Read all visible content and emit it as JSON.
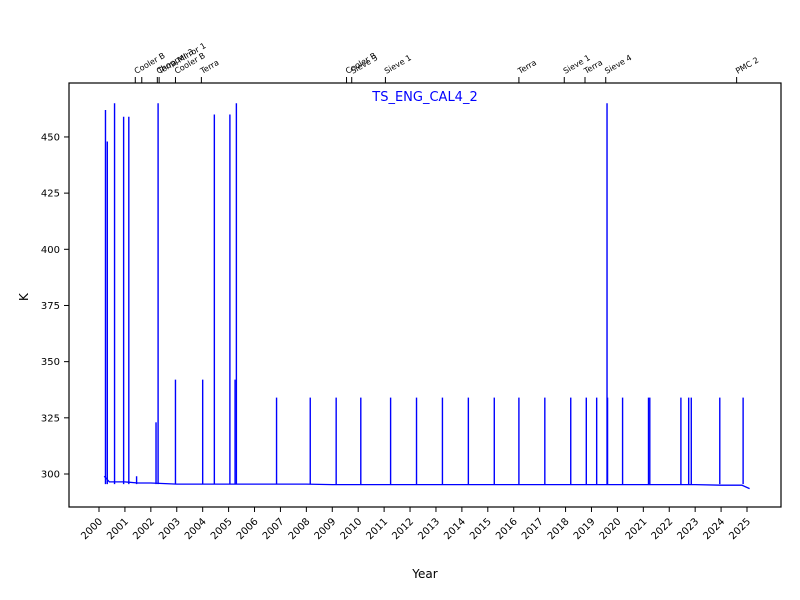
{
  "chart_data": {
    "type": "line",
    "title": "TS_ENG_CAL4_2",
    "xlabel": "Year",
    "ylabel": "K",
    "xlim": [
      1999.9,
      2027.4
    ],
    "ylim": [
      286,
      472
    ],
    "grid": false,
    "legend": null,
    "line_color": "#0000ff",
    "x_ticks": [
      "2000",
      "2001",
      "2002",
      "2003",
      "2004",
      "2005",
      "2006",
      "2007",
      "2008",
      "2009",
      "2010",
      "2011",
      "2012",
      "2013",
      "2014",
      "2015",
      "2016",
      "2017",
      "2018",
      "2019",
      "2020",
      "2021",
      "2022",
      "2023",
      "2024",
      "2025"
    ],
    "y_ticks": [
      300,
      325,
      350,
      375,
      400,
      425,
      450
    ],
    "baseline": {
      "x": [
        2000.2,
        2000.4,
        2001.0,
        2001.5,
        2002.0,
        2003.0,
        2004.0,
        2005.0,
        2006.0,
        2007.0,
        2008.0,
        2009.0,
        2010.0,
        2011.0,
        2012.0,
        2013.0,
        2014.0,
        2015.0,
        2016.0,
        2017.0,
        2018.0,
        2019.0,
        2020.0,
        2021.0,
        2022.0,
        2023.0,
        2024.0,
        2024.8,
        2025.1
      ],
      "y": [
        299,
        296.5,
        296.5,
        296,
        296,
        295.5,
        295.5,
        295.5,
        295.5,
        295.5,
        295.5,
        295.3,
        295.3,
        295.3,
        295.3,
        295.3,
        295.3,
        295.3,
        295.3,
        295.3,
        295.3,
        295.3,
        295.3,
        295.3,
        295.3,
        295.3,
        295,
        295,
        293.5
      ]
    },
    "spikes": [
      {
        "x": 2000.25,
        "y": 462
      },
      {
        "x": 2000.32,
        "y": 448
      },
      {
        "x": 2000.6,
        "y": 465
      },
      {
        "x": 2000.95,
        "y": 459
      },
      {
        "x": 2001.15,
        "y": 459
      },
      {
        "x": 2001.45,
        "y": 299
      },
      {
        "x": 2002.2,
        "y": 323
      },
      {
        "x": 2002.28,
        "y": 465
      },
      {
        "x": 2002.95,
        "y": 342
      },
      {
        "x": 2004.0,
        "y": 342
      },
      {
        "x": 2004.45,
        "y": 460
      },
      {
        "x": 2005.05,
        "y": 460
      },
      {
        "x": 2005.25,
        "y": 342
      },
      {
        "x": 2005.3,
        "y": 465
      },
      {
        "x": 2006.85,
        "y": 334
      },
      {
        "x": 2008.15,
        "y": 334
      },
      {
        "x": 2009.15,
        "y": 334
      },
      {
        "x": 2010.1,
        "y": 334
      },
      {
        "x": 2011.25,
        "y": 334
      },
      {
        "x": 2012.25,
        "y": 334
      },
      {
        "x": 2013.25,
        "y": 334
      },
      {
        "x": 2014.25,
        "y": 334
      },
      {
        "x": 2015.25,
        "y": 334
      },
      {
        "x": 2016.2,
        "y": 334
      },
      {
        "x": 2017.2,
        "y": 334
      },
      {
        "x": 2018.2,
        "y": 334
      },
      {
        "x": 2018.8,
        "y": 334
      },
      {
        "x": 2019.2,
        "y": 334
      },
      {
        "x": 2019.6,
        "y": 465
      },
      {
        "x": 2019.62,
        "y": 334
      },
      {
        "x": 2020.2,
        "y": 334
      },
      {
        "x": 2021.2,
        "y": 334
      },
      {
        "x": 2021.25,
        "y": 334
      },
      {
        "x": 2022.45,
        "y": 334
      },
      {
        "x": 2022.75,
        "y": 334
      },
      {
        "x": 2022.85,
        "y": 334
      },
      {
        "x": 2023.95,
        "y": 334
      },
      {
        "x": 2024.85,
        "y": 334
      }
    ],
    "events": [
      {
        "x": 2001.4,
        "label": "Cooler B"
      },
      {
        "x": 2001.65,
        "label": ""
      },
      {
        "x": 2002.25,
        "label": "Chopper 3"
      },
      {
        "x": 2002.32,
        "label": "Terra Mirror 1"
      },
      {
        "x": 2002.95,
        "label": "Cooler B"
      },
      {
        "x": 2003.95,
        "label": "Terra"
      },
      {
        "x": 2009.55,
        "label": "Cooler B"
      },
      {
        "x": 2009.75,
        "label": "Sieve 3"
      },
      {
        "x": 2011.05,
        "label": "Sieve 1"
      },
      {
        "x": 2016.2,
        "label": "Terra"
      },
      {
        "x": 2017.95,
        "label": "Sieve 1"
      },
      {
        "x": 2018.75,
        "label": "Terra"
      },
      {
        "x": 2019.55,
        "label": "Sieve 4"
      },
      {
        "x": 2024.6,
        "label": "PMC 2"
      }
    ]
  }
}
